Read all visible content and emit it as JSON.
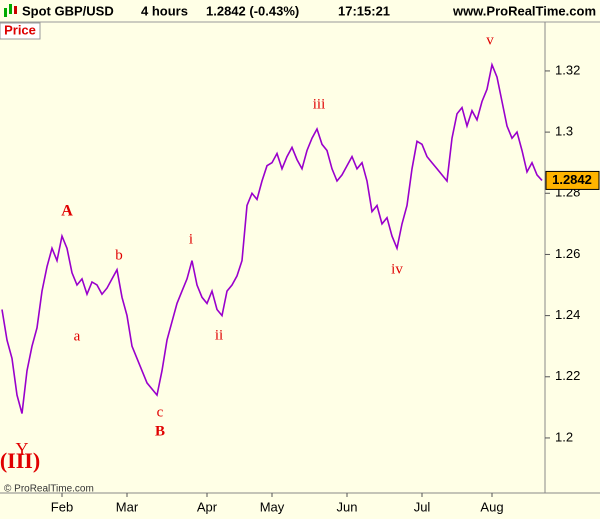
{
  "header": {
    "symbol": "Spot GBP/USD",
    "interval": "4 hours",
    "quote": "1.2842 (-0.43%)",
    "time": "17:15:21",
    "site": "www.ProRealTime.com"
  },
  "panel_label": "Price",
  "footer": "© ProRealTime.com",
  "annotations": [
    "(III)",
    "Y",
    "A",
    "a",
    "b",
    "c",
    "B",
    "i",
    "ii",
    "iii",
    "iv",
    "v"
  ],
  "chart_data": {
    "type": "line",
    "categories": [
      null,
      null,
      null,
      null,
      null,
      null,
      null,
      null,
      null,
      null,
      null,
      null,
      "Feb",
      null,
      null,
      null,
      null,
      null,
      null,
      null,
      null,
      null,
      null,
      null,
      null,
      "Mar",
      null,
      null,
      null,
      null,
      null,
      null,
      null,
      null,
      null,
      null,
      null,
      null,
      null,
      null,
      null,
      "Apr",
      null,
      null,
      null,
      null,
      null,
      null,
      null,
      null,
      null,
      null,
      null,
      null,
      "May",
      null,
      null,
      null,
      null,
      null,
      null,
      null,
      null,
      null,
      null,
      null,
      null,
      null,
      null,
      "Jun",
      null,
      null,
      null,
      null,
      null,
      null,
      null,
      null,
      null,
      null,
      null,
      null,
      null,
      null,
      "Jul",
      null,
      null,
      null,
      null,
      null,
      null,
      null,
      null,
      null,
      null,
      null,
      null,
      null,
      "Aug",
      null,
      null,
      null,
      null,
      null,
      null,
      null,
      null,
      null,
      null
    ],
    "series": [
      {
        "name": "Spot GBP/USD",
        "color": "#9900cc",
        "values": [
          1.242,
          1.232,
          1.226,
          1.214,
          1.208,
          1.222,
          1.23,
          1.236,
          1.248,
          1.256,
          1.262,
          1.258,
          1.266,
          1.262,
          1.254,
          1.25,
          1.252,
          1.247,
          1.251,
          1.25,
          1.247,
          1.249,
          1.252,
          1.255,
          1.246,
          1.24,
          1.23,
          1.226,
          1.222,
          1.218,
          1.216,
          1.214,
          1.222,
          1.232,
          1.238,
          1.244,
          1.248,
          1.252,
          1.258,
          1.25,
          1.246,
          1.244,
          1.248,
          1.242,
          1.24,
          1.248,
          1.25,
          1.253,
          1.258,
          1.276,
          1.28,
          1.278,
          1.284,
          1.289,
          1.29,
          1.293,
          1.288,
          1.292,
          1.295,
          1.291,
          1.288,
          1.294,
          1.298,
          1.301,
          1.296,
          1.294,
          1.288,
          1.284,
          1.286,
          1.289,
          1.292,
          1.288,
          1.29,
          1.284,
          1.274,
          1.276,
          1.27,
          1.272,
          1.266,
          1.262,
          1.27,
          1.276,
          1.288,
          1.297,
          1.296,
          1.292,
          1.29,
          1.288,
          1.286,
          1.284,
          1.298,
          1.306,
          1.308,
          1.302,
          1.307,
          1.304,
          1.31,
          1.314,
          1.322,
          1.318,
          1.31,
          1.302,
          1.298,
          1.3,
          1.294,
          1.287,
          1.29,
          1.286,
          1.2842
        ]
      }
    ],
    "ylim": [
      1.182,
      1.336
    ],
    "yticks": [
      1.2,
      1.22,
      1.24,
      1.26,
      1.28,
      1.3,
      1.32
    ],
    "grid": false
  }
}
